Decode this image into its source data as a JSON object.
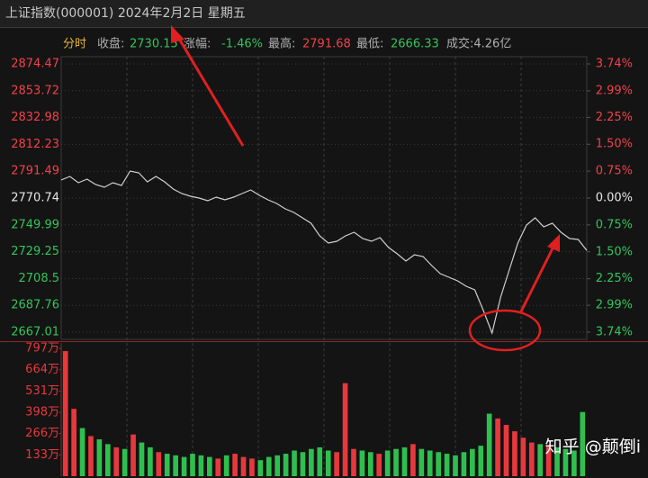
{
  "title": "上证指数(000001) 2024年2月2日 星期五",
  "info": {
    "mode": "分时",
    "close_label": "收盘:",
    "close": "2730.15",
    "change_label": "涨幅:",
    "change": "-1.46%",
    "high_label": "最高:",
    "high": "2791.68",
    "low_label": "最低:",
    "low": "2666.33",
    "turnover": "成交:4.26亿"
  },
  "watermark": "知乎 @颠倒i",
  "chart_data": [
    {
      "type": "line",
      "series": [
        {
          "color": "#d0d0d0",
          "values": [
            2784.66,
            2787.45,
            2782.57,
            2785.36,
            2781.18,
            2779.09,
            2782.57,
            2780.48,
            2791.65,
            2790.23,
            2783.27,
            2787.45,
            2783.27,
            2777.7,
            2774.22,
            2772.13,
            2770.74,
            2768.65,
            2771.43,
            2769.35,
            2771.43,
            2774.22,
            2776.99,
            2772.83,
            2769.35,
            2766.56,
            2762.38,
            2759.59,
            2755.42,
            2751.24,
            2741.5,
            2735.93,
            2737.32,
            2741.5,
            2744.28,
            2739.41,
            2737.32,
            2740.1,
            2732.45,
            2727.58,
            2721.99,
            2726.88,
            2725.48,
            2718.54,
            2712.24,
            2709.46,
            2706.69,
            2702.51,
            2699.74,
            2683.7,
            2666.33,
            2694.15,
            2715.04,
            2735.93,
            2749.85,
            2755.42,
            2748.46,
            2751.24,
            2744.28,
            2739.41,
            2738.69,
            2730.15
          ]
        }
      ],
      "ylim": [
        2667.01,
        2874.47
      ],
      "yticks": [
        2874.47,
        2853.72,
        2832.98,
        2812.23,
        2791.49,
        2770.74,
        2749.99,
        2729.25,
        2708.5,
        2687.76,
        2667.01
      ],
      "y2lim": [
        -3.74,
        3.74
      ],
      "y2ticks": [
        {
          "value": 3.74,
          "label": "3.74%"
        },
        {
          "value": 2.99,
          "label": "2.99%"
        },
        {
          "value": 2.25,
          "label": "2.25%"
        },
        {
          "value": 1.5,
          "label": "1.50%"
        },
        {
          "value": 0.75,
          "label": "0.75%"
        },
        {
          "value": 0,
          "label": "0.00%"
        },
        {
          "value": -0.75,
          "label": "0.75%"
        },
        {
          "value": -1.5,
          "label": "1.50%"
        },
        {
          "value": -2.25,
          "label": "2.25%"
        },
        {
          "value": -2.99,
          "label": "2.99%"
        },
        {
          "value": -3.74,
          "label": "3.74%"
        }
      ],
      "grid": true,
      "up_color": "#f0424a",
      "down_color": "#34c45a",
      "flat_color": "#e6e6e6"
    },
    {
      "type": "bar",
      "values": [
        780,
        420,
        300,
        250,
        230,
        200,
        180,
        170,
        260,
        210,
        180,
        150,
        140,
        130,
        120,
        140,
        130,
        120,
        110,
        130,
        140,
        120,
        110,
        100,
        120,
        130,
        140,
        160,
        150,
        170,
        180,
        160,
        150,
        580,
        170,
        160,
        150,
        140,
        160,
        170,
        180,
        200,
        170,
        160,
        150,
        140,
        130,
        150,
        170,
        190,
        390,
        360,
        320,
        280,
        240,
        210,
        200,
        190,
        180,
        170,
        160,
        400
      ],
      "ylim": [
        0,
        797
      ],
      "yticks": [
        {
          "value": 797,
          "label": "797万"
        },
        {
          "value": 664,
          "label": "664万"
        },
        {
          "value": 531,
          "label": "531万"
        },
        {
          "value": 398,
          "label": "398万"
        },
        {
          "value": 266,
          "label": "266万"
        },
        {
          "value": 133,
          "label": "133万"
        }
      ],
      "up_color": "#e8383d",
      "down_color": "#2fbf4f"
    }
  ]
}
